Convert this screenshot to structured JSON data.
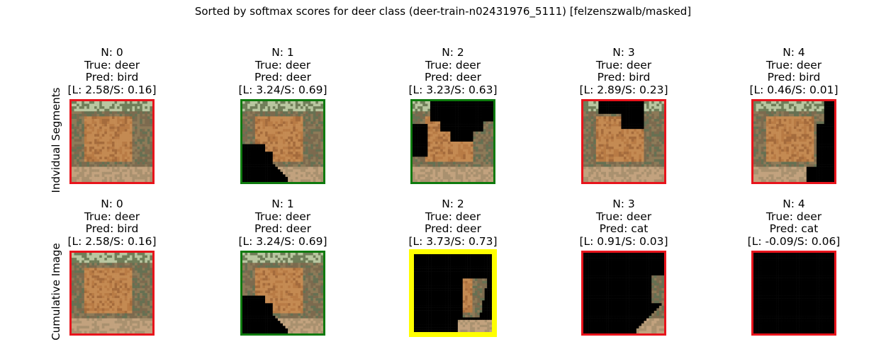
{
  "figure": {
    "suptitle": "Sorted by softmax scores for deer class (deer-train-n02431976_5111) [felzenszwalb/masked]"
  },
  "rows": [
    {
      "label": "Indvidual Segments",
      "panels": [
        {
          "n": "N: 0",
          "true": "True: deer",
          "pred": "Pred: bird",
          "score": "[L: 2.58/S: 0.16]",
          "border": "#e8141c",
          "mask": "none"
        },
        {
          "n": "N: 1",
          "true": "True: deer",
          "pred": "Pred: deer",
          "score": "[L: 3.24/S: 0.69]",
          "border": "#0e7a0e",
          "mask": "bottom-left"
        },
        {
          "n": "N: 2",
          "true": "True: deer",
          "pred": "Pred: deer",
          "score": "[L: 3.23/S: 0.63]",
          "border": "#0e7a0e",
          "mask": "top-large"
        },
        {
          "n": "N: 3",
          "true": "True: deer",
          "pred": "Pred: bird",
          "score": "[L: 2.89/S: 0.23]",
          "border": "#e8141c",
          "mask": "top-right"
        },
        {
          "n": "N: 4",
          "true": "True: deer",
          "pred": "Pred: bird",
          "score": "[L: 0.46/S: 0.01]",
          "border": "#e8141c",
          "mask": "right-side"
        }
      ]
    },
    {
      "label": "Cumulative Image",
      "panels": [
        {
          "n": "N: 0",
          "true": "True: deer",
          "pred": "Pred: bird",
          "score": "[L: 2.58/S: 0.16]",
          "border": "#e8141c",
          "mask": "none"
        },
        {
          "n": "N: 1",
          "true": "True: deer",
          "pred": "Pred: deer",
          "score": "[L: 3.24/S: 0.69]",
          "border": "#0e7a0e",
          "mask": "bottom-left"
        },
        {
          "n": "N: 2",
          "true": "True: deer",
          "pred": "Pred: deer",
          "score": "[L: 3.73/S: 0.73]",
          "border": "#ffff00",
          "mask": "cum-2"
        },
        {
          "n": "N: 3",
          "true": "True: deer",
          "pred": "Pred: cat",
          "score": "[L: 0.91/S: 0.03]",
          "border": "#e8141c",
          "mask": "cum-3"
        },
        {
          "n": "N: 4",
          "true": "True: deer",
          "pred": "Pred: cat",
          "score": "[L: -0.09/S: 0.06]",
          "border": "#e8141c",
          "mask": "all"
        }
      ]
    }
  ],
  "chart_data": {
    "type": "table",
    "title": "Sorted by softmax scores for deer class (deer-train-n02431976_5111) [felzenszwalb/masked]",
    "row_labels": [
      "Indvidual Segments",
      "Cumulative Image"
    ],
    "columns": [
      "N: 0",
      "N: 1",
      "N: 2",
      "N: 3",
      "N: 4"
    ],
    "true_class": "deer",
    "individual": [
      {
        "n": 0,
        "pred": "bird",
        "L": 2.58,
        "S": 0.16
      },
      {
        "n": 1,
        "pred": "deer",
        "L": 3.24,
        "S": 0.69
      },
      {
        "n": 2,
        "pred": "deer",
        "L": 3.23,
        "S": 0.63
      },
      {
        "n": 3,
        "pred": "bird",
        "L": 2.89,
        "S": 0.23
      },
      {
        "n": 4,
        "pred": "bird",
        "L": 0.46,
        "S": 0.01
      }
    ],
    "cumulative": [
      {
        "n": 0,
        "pred": "bird",
        "L": 2.58,
        "S": 0.16
      },
      {
        "n": 1,
        "pred": "deer",
        "L": 3.24,
        "S": 0.69
      },
      {
        "n": 2,
        "pred": "deer",
        "L": 3.73,
        "S": 0.73
      },
      {
        "n": 3,
        "pred": "cat",
        "L": 0.91,
        "S": 0.03
      },
      {
        "n": 4,
        "pred": "cat",
        "L": -0.09,
        "S": 0.06
      }
    ],
    "border_colors": {
      "correct": "#0e7a0e",
      "wrong": "#e8141c",
      "best": "#ffff00"
    }
  }
}
